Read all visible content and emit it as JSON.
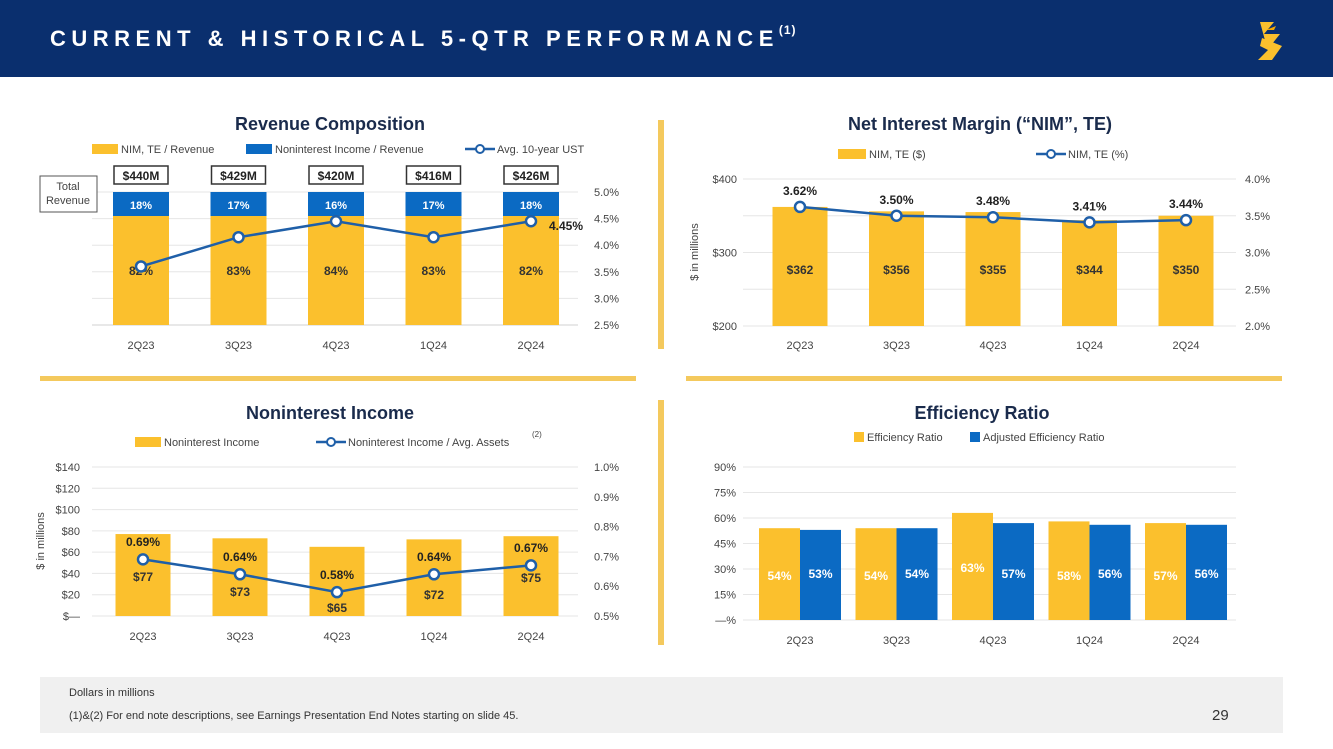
{
  "header": {
    "title": "CURRENT & HISTORICAL 5-QTR PERFORMANCE",
    "superscript": "(1)",
    "bg_color": "#0a2f6e",
    "logo_icon": "synovus-s-logo-icon"
  },
  "colors": {
    "gold": "#fbc02d",
    "blue": "#0b6ac3",
    "navy": "#0a2f6e",
    "line": "#1f5fa8",
    "divider": "#f4c95d"
  },
  "chart_data": [
    {
      "id": "revenue",
      "type": "bar",
      "stacked": true,
      "title": "Revenue Composition",
      "categories": [
        "2Q23",
        "3Q23",
        "4Q23",
        "1Q24",
        "2Q24"
      ],
      "series": [
        {
          "name": "NIM, TE / Revenue",
          "labels": [
            "82%",
            "83%",
            "84%",
            "83%",
            "82%"
          ]
        },
        {
          "name": "Noninterest Income / Revenue",
          "labels": [
            "18%",
            "17%",
            "16%",
            "17%",
            "18%"
          ]
        }
      ],
      "totals": [
        "$440M",
        "$429M",
        "$420M",
        "$416M",
        "$426M"
      ],
      "total_label": "Total Revenue",
      "line": {
        "name": "Avg. 10-year UST",
        "values": [
          3.6,
          4.15,
          4.45,
          4.15,
          4.45
        ],
        "last_label": "4.45%"
      },
      "y2_ticks": [
        "5.0%",
        "4.5%",
        "4.0%",
        "3.5%",
        "3.0%",
        "2.5%"
      ],
      "y2lim": [
        2.5,
        5.0
      ]
    },
    {
      "id": "nim",
      "type": "bar",
      "title": "Net Interest Margin (“NIM”, TE)",
      "categories": [
        "2Q23",
        "3Q23",
        "4Q23",
        "1Q24",
        "2Q24"
      ],
      "series": [
        {
          "name": "NIM, TE ($)",
          "values": [
            362,
            356,
            355,
            344,
            350
          ],
          "labels": [
            "$362",
            "$356",
            "$355",
            "$344",
            "$350"
          ]
        }
      ],
      "line": {
        "name": "NIM, TE (%)",
        "values": [
          3.62,
          3.5,
          3.48,
          3.41,
          3.44
        ],
        "labels": [
          "3.62%",
          "3.50%",
          "3.48%",
          "3.41%",
          "3.44%"
        ]
      },
      "ylabel": "$ in millions",
      "y_ticks": [
        "$400",
        "$300",
        "$200"
      ],
      "ylim": [
        200,
        400
      ],
      "y2_ticks": [
        "4.0%",
        "3.5%",
        "3.0%",
        "2.5%",
        "2.0%"
      ],
      "y2lim": [
        2.0,
        4.0
      ]
    },
    {
      "id": "nonint",
      "type": "bar",
      "title": "Noninterest Income",
      "categories": [
        "2Q23",
        "3Q23",
        "4Q23",
        "1Q24",
        "2Q24"
      ],
      "series": [
        {
          "name": "Noninterest Income",
          "values": [
            77,
            73,
            65,
            72,
            75
          ],
          "labels": [
            "$77",
            "$73",
            "$65",
            "$72",
            "$75"
          ]
        }
      ],
      "line": {
        "name": "Noninterest Income / Avg. Assets",
        "note": "(2)",
        "values": [
          0.69,
          0.64,
          0.58,
          0.64,
          0.67
        ],
        "labels": [
          "0.69%",
          "0.64%",
          "0.58%",
          "0.64%",
          "0.67%"
        ]
      },
      "ylabel": "$ in millions",
      "y_ticks": [
        "$140",
        "$120",
        "$100",
        "$80",
        "$60",
        "$40",
        "$20",
        "$—"
      ],
      "ylim": [
        0,
        140
      ],
      "y2_ticks": [
        "1.0%",
        "0.9%",
        "0.8%",
        "0.7%",
        "0.6%",
        "0.5%"
      ],
      "y2lim": [
        0.5,
        1.0
      ]
    },
    {
      "id": "eff",
      "type": "bar",
      "title": "Efficiency Ratio",
      "categories": [
        "2Q23",
        "3Q23",
        "4Q23",
        "1Q24",
        "2Q24"
      ],
      "series": [
        {
          "name": "Efficiency Ratio",
          "values": [
            54,
            54,
            63,
            58,
            57
          ],
          "labels": [
            "54%",
            "54%",
            "63%",
            "58%",
            "57%"
          ]
        },
        {
          "name": "Adjusted Efficiency Ratio",
          "values": [
            53,
            54,
            57,
            56,
            56
          ],
          "labels": [
            "53%",
            "54%",
            "57%",
            "56%",
            "56%"
          ]
        }
      ],
      "y_ticks": [
        "90%",
        "75%",
        "60%",
        "45%",
        "30%",
        "15%",
        "—%"
      ],
      "ylim": [
        0,
        90
      ]
    }
  ],
  "footer": {
    "line1": "Dollars in millions",
    "line2": "(1)&(2)  For end note descriptions, see Earnings Presentation End Notes starting on slide 45.",
    "page": "29"
  }
}
